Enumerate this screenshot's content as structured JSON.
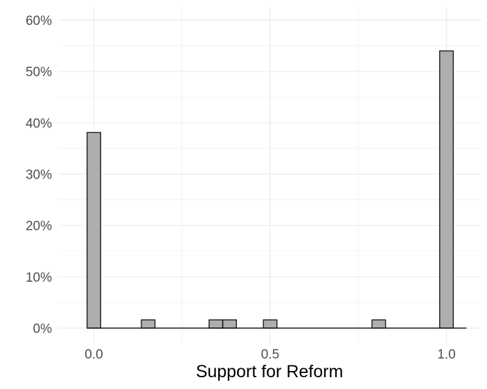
{
  "chart_data": {
    "type": "bar",
    "title": "",
    "xlabel": "Support for Reform",
    "ylabel": "",
    "x_ticks": [
      "0.0",
      "0.5",
      "1.0"
    ],
    "x_tick_values": [
      0.0,
      0.5,
      1.0
    ],
    "y_ticks": [
      "0%",
      "10%",
      "20%",
      "30%",
      "40%",
      "50%",
      "60%"
    ],
    "y_tick_values": [
      0,
      10,
      20,
      30,
      40,
      50,
      60
    ],
    "xlim": [
      -0.1,
      1.1
    ],
    "ylim": [
      0,
      60
    ],
    "bin_width": 0.0385,
    "bars": [
      {
        "x": 0.0,
        "value": 38.1
      },
      {
        "x": 0.154,
        "value": 1.6
      },
      {
        "x": 0.346,
        "value": 1.6
      },
      {
        "x": 0.385,
        "value": 1.6
      },
      {
        "x": 0.5,
        "value": 1.6
      },
      {
        "x": 0.808,
        "value": 1.6
      },
      {
        "x": 1.0,
        "value": 54.0
      }
    ],
    "grid": true,
    "colors": {
      "bar_fill": "#aeaeae",
      "bar_stroke": "#1a1a1a",
      "grid": "#ebebeb"
    }
  }
}
